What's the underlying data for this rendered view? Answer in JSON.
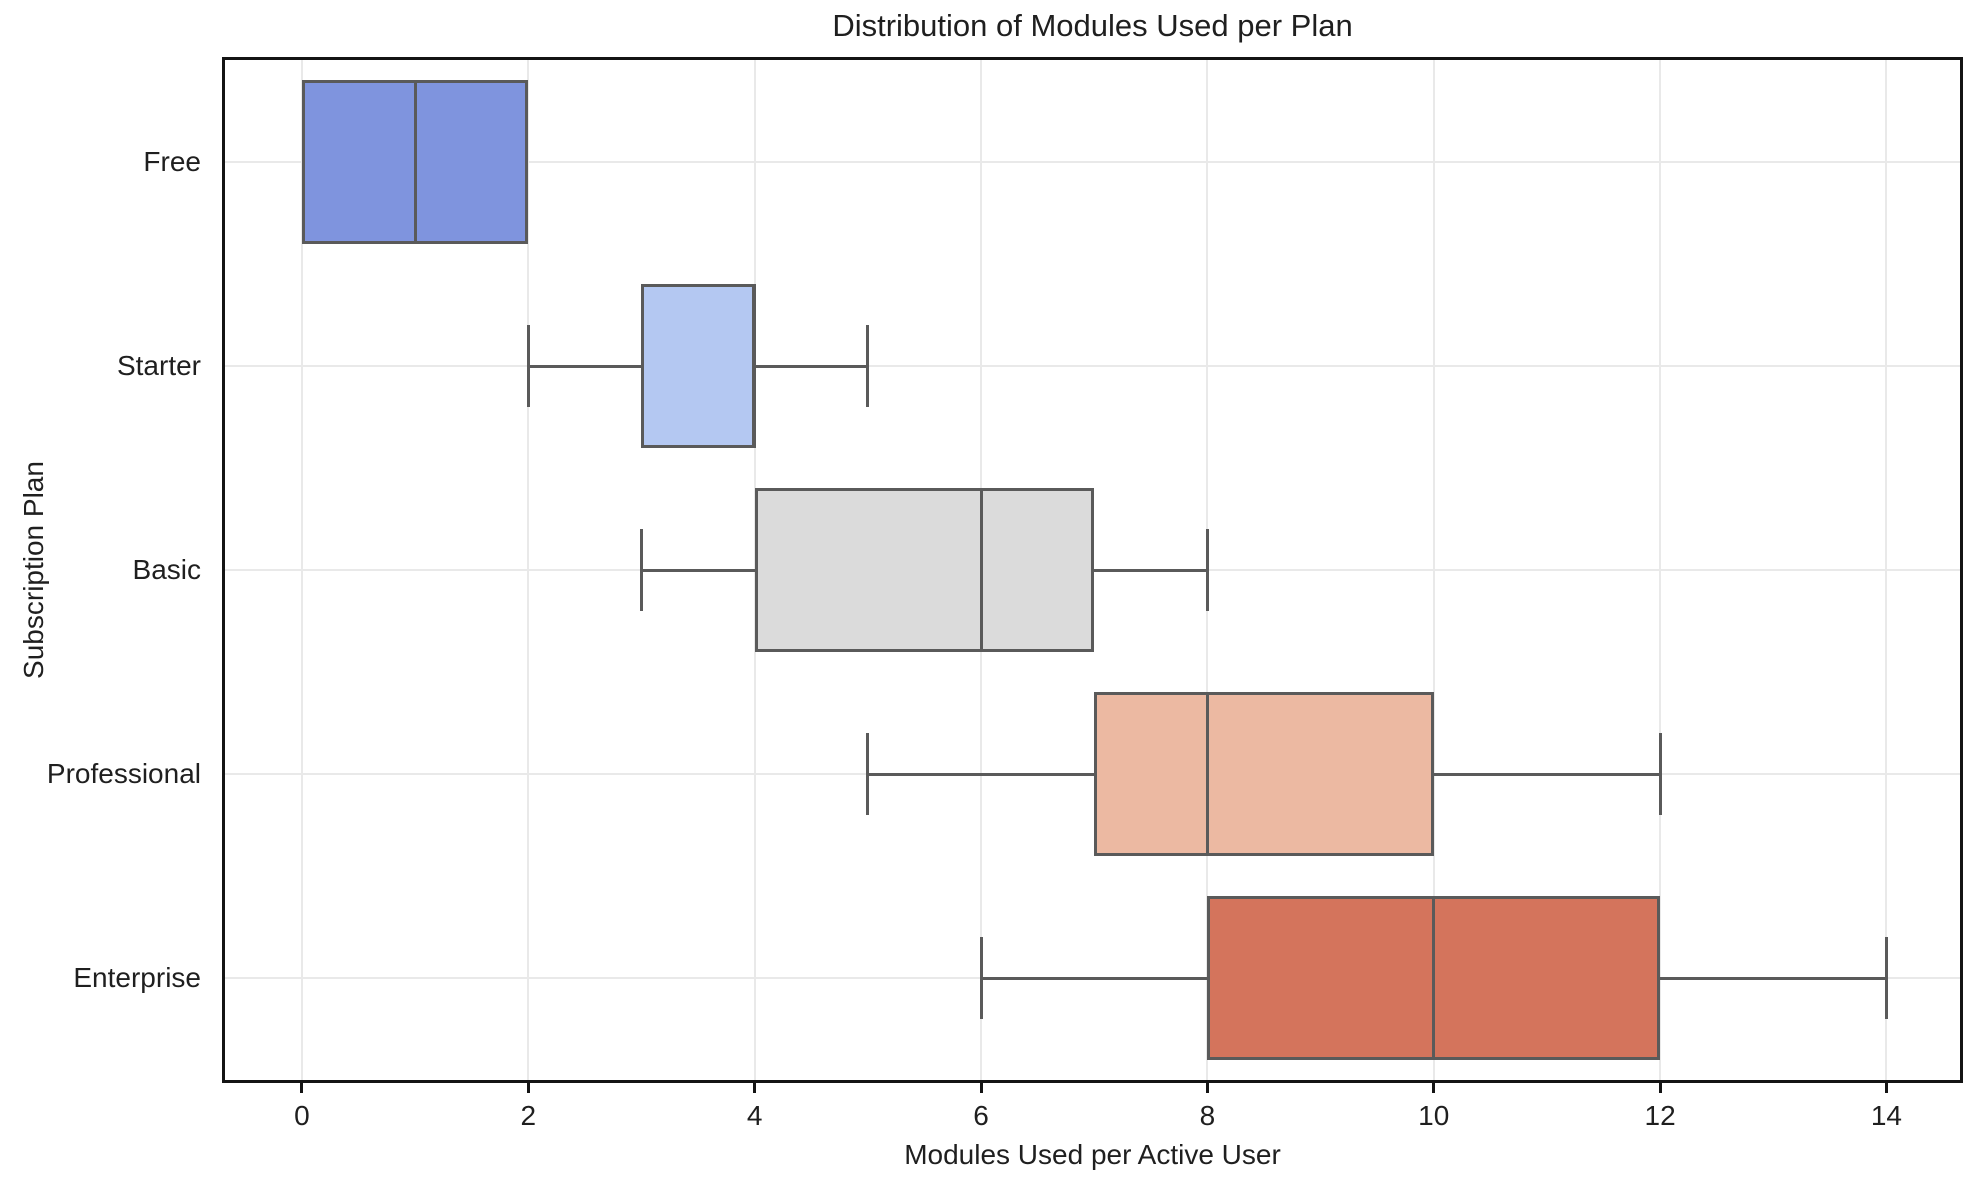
{
  "chart_data": {
    "type": "boxplot",
    "orientation": "horizontal",
    "title": "Distribution of Modules Used per Plan",
    "xlabel": "Modules Used per Active User",
    "ylabel": "Subscription Plan",
    "categories": [
      "Free",
      "Starter",
      "Basic",
      "Professional",
      "Enterprise"
    ],
    "series": [
      {
        "name": "Free",
        "whisker_low": 0,
        "q1": 0,
        "median": 1,
        "q3": 2,
        "whisker_high": 2,
        "fill": "#7F94DE"
      },
      {
        "name": "Starter",
        "whisker_low": 2,
        "q1": 3,
        "median": 4,
        "q3": 4,
        "whisker_high": 5,
        "fill": "#B4C8F2"
      },
      {
        "name": "Basic",
        "whisker_low": 3,
        "q1": 4,
        "median": 6,
        "q3": 7,
        "whisker_high": 8,
        "fill": "#DBDBDB"
      },
      {
        "name": "Professional",
        "whisker_low": 5,
        "q1": 7,
        "median": 8,
        "q3": 10,
        "whisker_high": 12,
        "fill": "#ECB9A2"
      },
      {
        "name": "Enterprise",
        "whisker_low": 6,
        "q1": 8,
        "median": 10,
        "q3": 12,
        "whisker_high": 14,
        "fill": "#D4745C"
      }
    ],
    "xticks": [
      0,
      2,
      4,
      6,
      8,
      10,
      12,
      14
    ],
    "xlim": [
      -0.68,
      14.65
    ],
    "grid": true,
    "legend": "none",
    "colors": {
      "box_edge": "#5A5A5A",
      "grid": "#E9E9E9",
      "spine": "#141414",
      "text": "#1F1F1F",
      "background": "#FFFFFF"
    }
  }
}
